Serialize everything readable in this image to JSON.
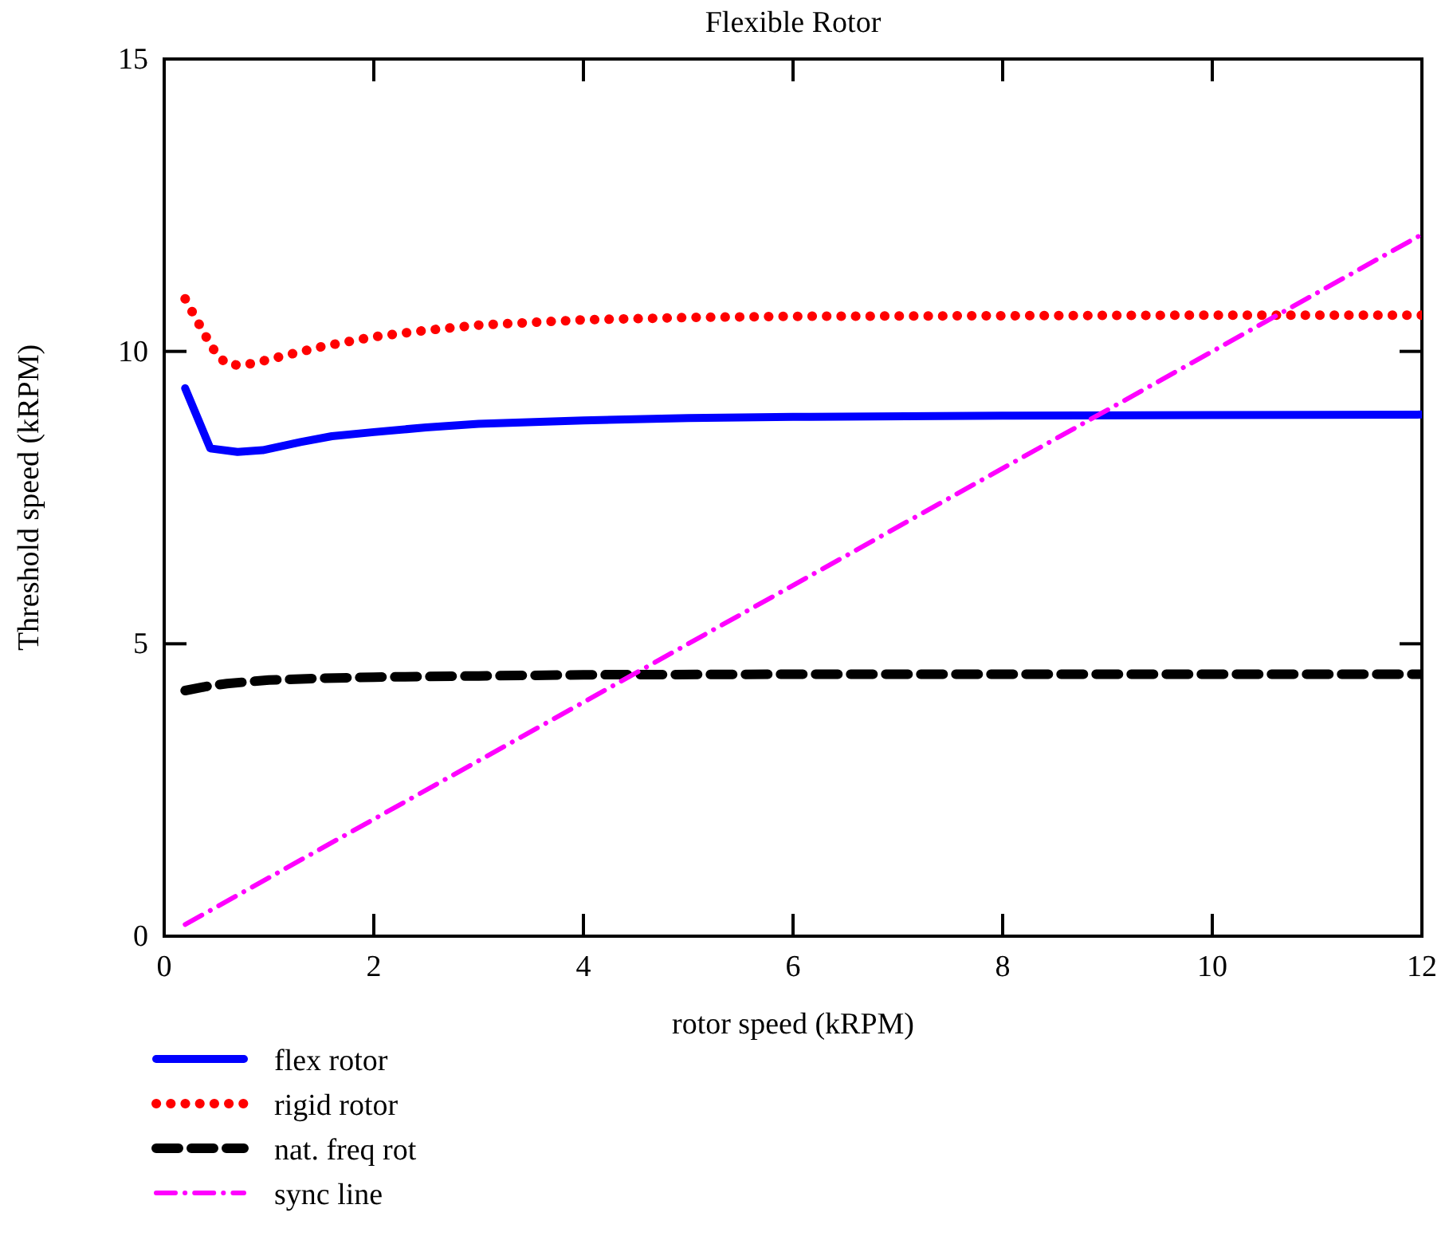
{
  "chart_data": {
    "type": "line",
    "title": "Flexible Rotor",
    "xlabel": "rotor speed (kRPM)",
    "ylabel": "Threshold speed (kRPM)",
    "xlim": [
      0,
      12
    ],
    "ylim": [
      0,
      15
    ],
    "xticks": [
      0,
      2,
      4,
      6,
      8,
      10,
      12
    ],
    "yticks": [
      0,
      5,
      10,
      15
    ],
    "grid": false,
    "legend": "bottom",
    "series": [
      {
        "name": "flex rotor",
        "color": "#0000ff",
        "line_style": "solid",
        "x": [
          0.2,
          0.44,
          0.7,
          0.94,
          1.3,
          1.6,
          2,
          2.5,
          3,
          4,
          5,
          6,
          8,
          10,
          12
        ],
        "values": [
          9.37,
          8.34,
          8.28,
          8.31,
          8.45,
          8.55,
          8.62,
          8.7,
          8.76,
          8.82,
          8.86,
          8.88,
          8.9,
          8.91,
          8.92
        ]
      },
      {
        "name": "rigid rotor",
        "color": "#ff0000",
        "line_style": "dotted",
        "x": [
          0.2,
          0.3,
          0.4,
          0.5,
          0.6,
          0.75,
          0.95,
          1.2,
          1.5,
          2,
          2.5,
          3,
          4,
          5,
          6,
          8,
          10,
          12
        ],
        "values": [
          10.9,
          10.57,
          10.25,
          9.95,
          9.78,
          9.76,
          9.84,
          9.95,
          10.08,
          10.25,
          10.36,
          10.45,
          10.54,
          10.58,
          10.6,
          10.61,
          10.62,
          10.62
        ]
      },
      {
        "name": "nat. freq rot",
        "color": "#000000",
        "line_style": "dashed",
        "x": [
          0.2,
          0.4,
          0.6,
          1,
          1.5,
          2,
          3,
          4,
          6,
          8,
          10,
          12
        ],
        "values": [
          4.2,
          4.27,
          4.32,
          4.38,
          4.41,
          4.43,
          4.45,
          4.47,
          4.48,
          4.48,
          4.48,
          4.48
        ]
      },
      {
        "name": "sync line",
        "color": "#ff00ff",
        "line_style": "dashdot",
        "x": [
          0.2,
          12
        ],
        "values": [
          0.2,
          12
        ]
      }
    ]
  }
}
